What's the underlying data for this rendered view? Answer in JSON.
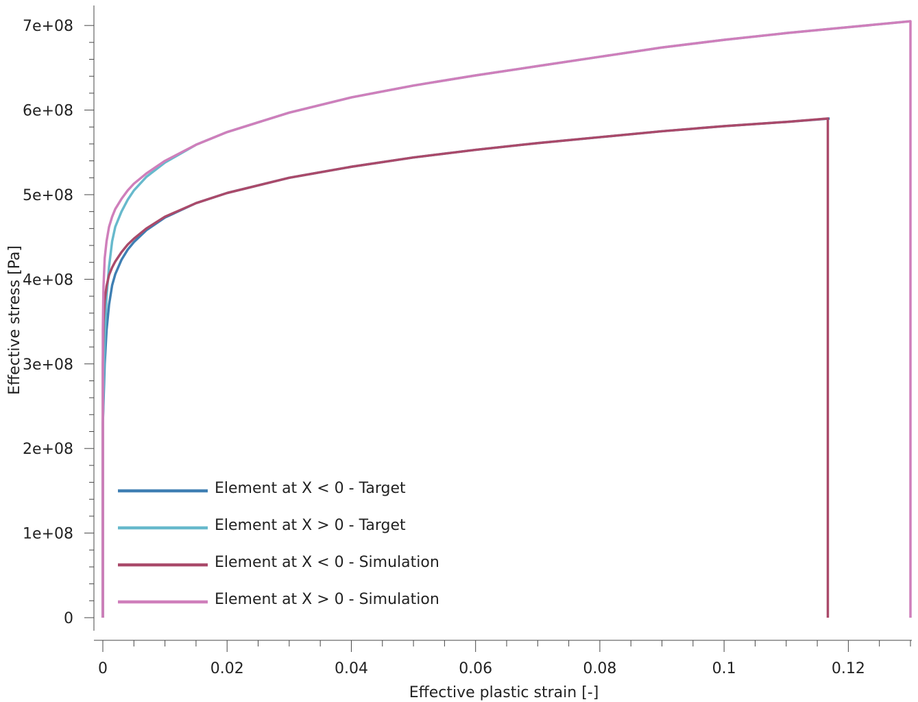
{
  "chart_data": {
    "type": "line",
    "xlabel": "Effective plastic strain [-]",
    "ylabel": "Effective stress [Pa]",
    "xlim": [
      0,
      0.13
    ],
    "ylim": [
      0,
      705000000
    ],
    "xticks": [
      {
        "value": 0,
        "label": "0"
      },
      {
        "value": 0.02,
        "label": "0.02"
      },
      {
        "value": 0.04,
        "label": "0.04"
      },
      {
        "value": 0.06,
        "label": "0.06"
      },
      {
        "value": 0.08,
        "label": "0.08"
      },
      {
        "value": 0.1,
        "label": "0.1"
      },
      {
        "value": 0.12,
        "label": "0.12"
      }
    ],
    "yticks": [
      {
        "value": 0,
        "label": "0"
      },
      {
        "value": 100000000,
        "label": "1e+08"
      },
      {
        "value": 200000000,
        "label": "2e+08"
      },
      {
        "value": 300000000,
        "label": "3e+08"
      },
      {
        "value": 400000000,
        "label": "4e+08"
      },
      {
        "value": 500000000,
        "label": "5e+08"
      },
      {
        "value": 600000000,
        "label": "6e+08"
      },
      {
        "value": 700000000,
        "label": "7e+08"
      }
    ],
    "grid": false,
    "legend_position": "bottom-left",
    "series": [
      {
        "name": "Element at X < 0 - Target",
        "color": "#3f7fb3",
        "x": [
          0,
          0,
          0.0003,
          0.0006,
          0.001,
          0.0015,
          0.002,
          0.003,
          0.004,
          0.005,
          0.007,
          0.01,
          0.015,
          0.02,
          0.03,
          0.04,
          0.05,
          0.06,
          0.07,
          0.08,
          0.09,
          0.1,
          0.11,
          0.117,
          0.117
        ],
        "y": [
          0,
          230000000,
          300000000,
          340000000,
          370000000,
          393000000,
          406000000,
          423000000,
          435000000,
          444000000,
          458000000,
          473000000,
          490000000,
          502000000,
          520000000,
          533000000,
          544000000,
          553000000,
          561000000,
          568000000,
          575000000,
          581000000,
          586000000,
          590000000,
          590000000
        ]
      },
      {
        "name": "Element at X > 0 - Target",
        "color": "#67b9cc",
        "x": [
          0,
          0,
          0.0003,
          0.0006,
          0.001,
          0.0015,
          0.002,
          0.003,
          0.004,
          0.005,
          0.007,
          0.01,
          0.015,
          0.02,
          0.03,
          0.04,
          0.05,
          0.06,
          0.07,
          0.08,
          0.09,
          0.1,
          0.11,
          0.12,
          0.13,
          0.13
        ],
        "y": [
          0,
          230000000,
          330000000,
          380000000,
          415000000,
          445000000,
          462000000,
          480000000,
          494000000,
          505000000,
          521000000,
          538000000,
          559000000,
          574000000,
          597000000,
          615000000,
          629000000,
          641000000,
          652000000,
          663000000,
          674000000,
          683000000,
          691000000,
          698000000,
          705000000,
          705000000
        ]
      },
      {
        "name": "Element at X < 0 - Simulation",
        "color": "#aa4a6a",
        "x": [
          0,
          0,
          0.0001,
          0.0003,
          0.0006,
          0.001,
          0.0015,
          0.002,
          0.003,
          0.004,
          0.005,
          0.007,
          0.01,
          0.015,
          0.02,
          0.03,
          0.04,
          0.05,
          0.06,
          0.07,
          0.08,
          0.09,
          0.1,
          0.11,
          0.1167,
          0.1167
        ],
        "y": [
          0,
          300000000,
          350000000,
          375000000,
          392000000,
          405000000,
          414000000,
          421000000,
          432000000,
          441000000,
          448000000,
          460000000,
          474000000,
          490000000,
          502000000,
          520000000,
          533000000,
          544000000,
          553000000,
          561000000,
          568000000,
          575000000,
          581000000,
          586000000,
          590000000,
          0
        ]
      },
      {
        "name": "Element at X > 0 - Simulation",
        "color": "#cf7fbb",
        "x": [
          0,
          0,
          0.0001,
          0.0003,
          0.0006,
          0.001,
          0.0015,
          0.002,
          0.003,
          0.004,
          0.005,
          0.007,
          0.01,
          0.015,
          0.02,
          0.03,
          0.04,
          0.05,
          0.06,
          0.07,
          0.08,
          0.09,
          0.1,
          0.11,
          0.12,
          0.13,
          0.13
        ],
        "y": [
          0,
          340000000,
          390000000,
          425000000,
          445000000,
          462000000,
          474000000,
          483000000,
          495000000,
          505000000,
          513000000,
          525000000,
          540000000,
          559000000,
          574000000,
          597000000,
          615000000,
          629000000,
          641000000,
          652000000,
          663000000,
          674000000,
          683000000,
          691000000,
          698000000,
          705000000,
          0
        ]
      }
    ]
  }
}
